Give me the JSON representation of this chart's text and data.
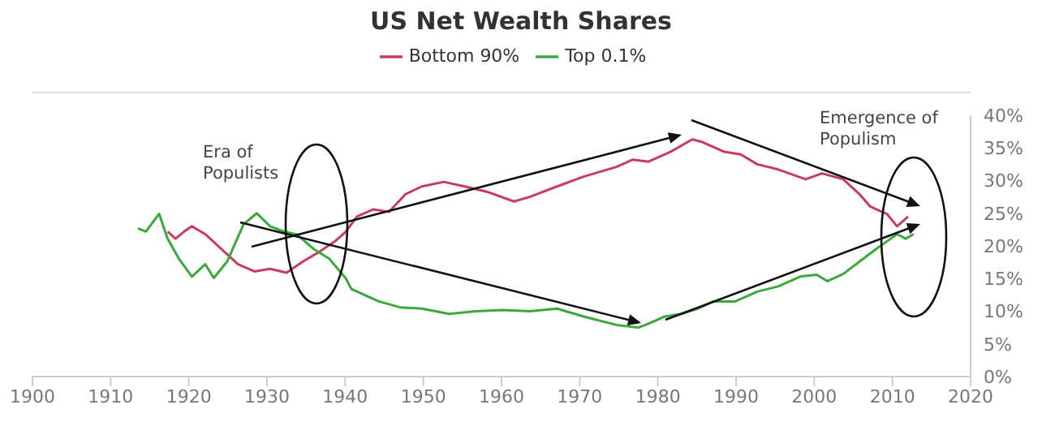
{
  "chart_data": {
    "type": "line",
    "title": "US Net Wealth Shares",
    "xlim": [
      1900,
      2020
    ],
    "xticks": [
      1900,
      1910,
      1920,
      1930,
      1940,
      1950,
      1960,
      1970,
      1980,
      1990,
      2000,
      2010,
      2020
    ],
    "ylim": [
      0,
      40
    ],
    "yticks": [
      {
        "value": 0,
        "label": "0%"
      },
      {
        "value": 5,
        "label": "5%"
      },
      {
        "value": 10,
        "label": "10%"
      },
      {
        "value": 15,
        "label": "15%"
      },
      {
        "value": 20,
        "label": "20%"
      },
      {
        "value": 25,
        "label": "25%"
      },
      {
        "value": 30,
        "label": "30%"
      },
      {
        "value": 35,
        "label": "35%"
      },
      {
        "value": 40,
        "label": "40%"
      }
    ],
    "grid": false,
    "legend": "top",
    "marker": "none",
    "line_style": "solid",
    "annotations": [
      "Era of Populists",
      "Emergence of Populism"
    ],
    "series": [
      {
        "name": "Bottom 90%",
        "color": "#c83c5c",
        "x": [
          1917.3,
          1918.3,
          1919.4,
          1920.4,
          1922.1,
          1924.2,
          1926.3,
          1928.4,
          1930.4,
          1932.5,
          1934.6,
          1936.7,
          1938.7,
          1940.1,
          1941.5,
          1943.6,
          1945.6,
          1947.7,
          1949.8,
          1952.6,
          1955.3,
          1958.1,
          1961.6,
          1963.6,
          1967.1,
          1970.5,
          1974.7,
          1976.8,
          1978.8,
          1981.6,
          1984.4,
          1985.7,
          1988.5,
          1990.6,
          1992.7,
          1995.4,
          1998.9,
          2001,
          2003.7,
          2005.8,
          2007.2,
          2009.3,
          2010.6,
          2012
        ],
        "values": [
          22.2,
          21.1,
          22.2,
          23,
          21.8,
          19.5,
          17.2,
          16.1,
          16.5,
          15.9,
          17.6,
          19.1,
          20.7,
          22.2,
          24.5,
          25.6,
          25.2,
          27.9,
          29.1,
          29.8,
          29.1,
          28.3,
          26.8,
          27.5,
          29.1,
          30.6,
          32.1,
          33.2,
          32.9,
          34.4,
          36.3,
          35.9,
          34.4,
          34,
          32.5,
          31.7,
          30.2,
          31.1,
          30.2,
          27.9,
          26,
          24.9,
          23,
          24.5
        ]
      },
      {
        "name": "Top 0.1%",
        "color": "#3aa83a",
        "x": [
          1913.5,
          1914.5,
          1916.2,
          1917.3,
          1918.7,
          1920.4,
          1922.1,
          1923.2,
          1924.9,
          1927,
          1928.7,
          1930.4,
          1932.2,
          1933.9,
          1936,
          1938,
          1940.1,
          1940.8,
          1944.3,
          1947,
          1949.8,
          1953.3,
          1956.7,
          1960.2,
          1963.6,
          1967.1,
          1970.5,
          1974.7,
          1977.5,
          1978.8,
          1980.9,
          1983,
          1985.1,
          1987.1,
          1989.9,
          1992.7,
          1995.4,
          1998.2,
          2000.3,
          2001.7,
          2003.7,
          2005.8,
          2007.9,
          2009.3,
          2010.6,
          2011.7,
          2012.7
        ],
        "values": [
          22.7,
          22.2,
          24.9,
          21.1,
          18.1,
          15.3,
          17.2,
          15.1,
          17.6,
          23.3,
          25,
          23,
          22.2,
          21.7,
          19.5,
          18,
          15,
          13.4,
          11.5,
          10.6,
          10.4,
          9.6,
          10,
          10.2,
          10,
          10.4,
          9.2,
          7.9,
          7.5,
          8.1,
          9.2,
          9.6,
          10.4,
          11.5,
          11.5,
          13,
          13.8,
          15.3,
          15.6,
          14.6,
          15.7,
          17.6,
          19.5,
          20.7,
          21.8,
          21.1,
          21.8
        ]
      }
    ]
  }
}
